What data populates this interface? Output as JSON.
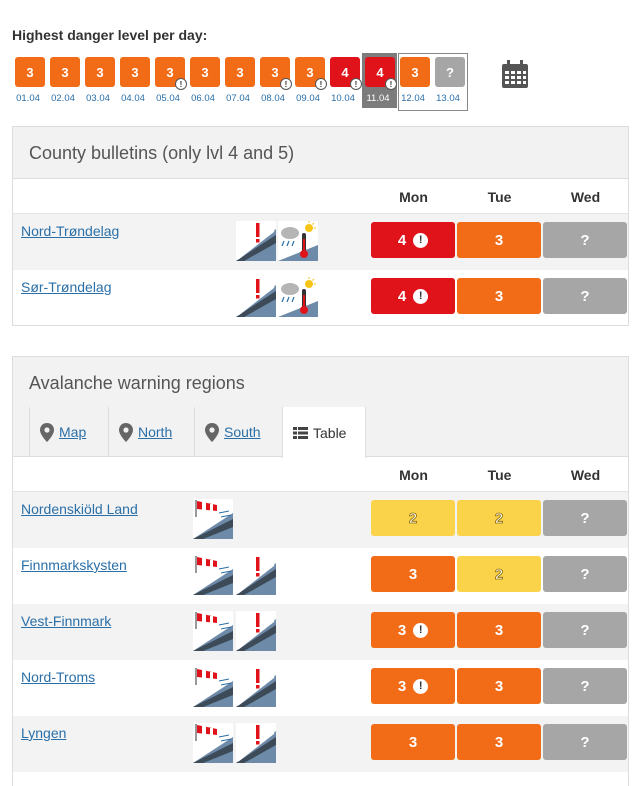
{
  "topbar": {
    "title": "Highest danger level per day:",
    "days": [
      {
        "level": "3",
        "date": "01.04",
        "color": "#f26b17",
        "warning": false
      },
      {
        "level": "3",
        "date": "02.04",
        "color": "#f26b17",
        "warning": false
      },
      {
        "level": "3",
        "date": "03.04",
        "color": "#f26b17",
        "warning": false
      },
      {
        "level": "3",
        "date": "04.04",
        "color": "#f26b17",
        "warning": false
      },
      {
        "level": "3",
        "date": "05.04",
        "color": "#f26b17",
        "warning": true
      },
      {
        "level": "3",
        "date": "06.04",
        "color": "#f26b17",
        "warning": false
      },
      {
        "level": "3",
        "date": "07.04",
        "color": "#f26b17",
        "warning": false
      },
      {
        "level": "3",
        "date": "08.04",
        "color": "#f26b17",
        "warning": true
      },
      {
        "level": "3",
        "date": "09.04",
        "color": "#f26b17",
        "warning": true
      },
      {
        "level": "4",
        "date": "10.04",
        "color": "#e1131a",
        "warning": true
      },
      {
        "level": "4",
        "date": "11.04",
        "color": "#e1131a",
        "warning": true,
        "selected": true
      },
      {
        "level": "3",
        "date": "12.04",
        "color": "#f26b17",
        "warning": false
      },
      {
        "level": "?",
        "date": "13.04",
        "color": "#a6a6a6",
        "warning": false
      }
    ],
    "calendar_icon": "calendar-icon"
  },
  "county": {
    "title": "County bulletins (only lvl 4 and 5)",
    "columns": [
      "Mon",
      "Tue",
      "Wed"
    ],
    "rows": [
      {
        "name": "Nord-Trøndelag",
        "icons": [
          "wet-slab-icon",
          "weather-temperature-icon"
        ],
        "cells": [
          {
            "value": "4",
            "level": "4",
            "warn": true
          },
          {
            "value": "3",
            "level": "3",
            "warn": false
          },
          {
            "value": "?",
            "level": "q",
            "warn": false
          }
        ]
      },
      {
        "name": "Sør-Trøndelag",
        "icons": [
          "wet-slab-icon",
          "weather-temperature-icon"
        ],
        "cells": [
          {
            "value": "4",
            "level": "4",
            "warn": true
          },
          {
            "value": "3",
            "level": "3",
            "warn": false
          },
          {
            "value": "?",
            "level": "q",
            "warn": false
          }
        ]
      }
    ]
  },
  "regions": {
    "title": "Avalanche warning regions",
    "tabs": [
      {
        "label": "Map",
        "icon": "map-pin-icon",
        "active": false
      },
      {
        "label": "North",
        "icon": "map-pin-icon",
        "active": false
      },
      {
        "label": "South",
        "icon": "map-pin-icon",
        "active": false
      },
      {
        "label": "Table",
        "icon": "table-icon",
        "active": true
      }
    ],
    "columns": [
      "Mon",
      "Tue",
      "Wed"
    ],
    "rows": [
      {
        "name": "Nordenskiöld Land",
        "icons": [
          "wind-slab-icon"
        ],
        "cells": [
          {
            "value": "2",
            "level": "2",
            "warn": false
          },
          {
            "value": "2",
            "level": "2",
            "warn": false
          },
          {
            "value": "?",
            "level": "q",
            "warn": false
          }
        ]
      },
      {
        "name": "Finnmarkskysten",
        "icons": [
          "wind-slab-icon",
          "wet-slab-icon"
        ],
        "cells": [
          {
            "value": "3",
            "level": "3",
            "warn": false
          },
          {
            "value": "2",
            "level": "2",
            "warn": false
          },
          {
            "value": "?",
            "level": "q",
            "warn": false
          }
        ]
      },
      {
        "name": "Vest-Finnmark",
        "icons": [
          "wind-slab-icon",
          "wet-slab-icon"
        ],
        "cells": [
          {
            "value": "3",
            "level": "3",
            "warn": true
          },
          {
            "value": "3",
            "level": "3",
            "warn": false
          },
          {
            "value": "?",
            "level": "q",
            "warn": false
          }
        ]
      },
      {
        "name": "Nord-Troms",
        "icons": [
          "wind-slab-icon",
          "wet-slab-icon"
        ],
        "cells": [
          {
            "value": "3",
            "level": "3",
            "warn": true
          },
          {
            "value": "3",
            "level": "3",
            "warn": false
          },
          {
            "value": "?",
            "level": "q",
            "warn": false
          }
        ]
      },
      {
        "name": "Lyngen",
        "icons": [
          "wind-slab-icon",
          "wet-slab-icon"
        ],
        "cells": [
          {
            "value": "3",
            "level": "3",
            "warn": false
          },
          {
            "value": "3",
            "level": "3",
            "warn": false
          },
          {
            "value": "?",
            "level": "q",
            "warn": false
          }
        ]
      }
    ]
  }
}
